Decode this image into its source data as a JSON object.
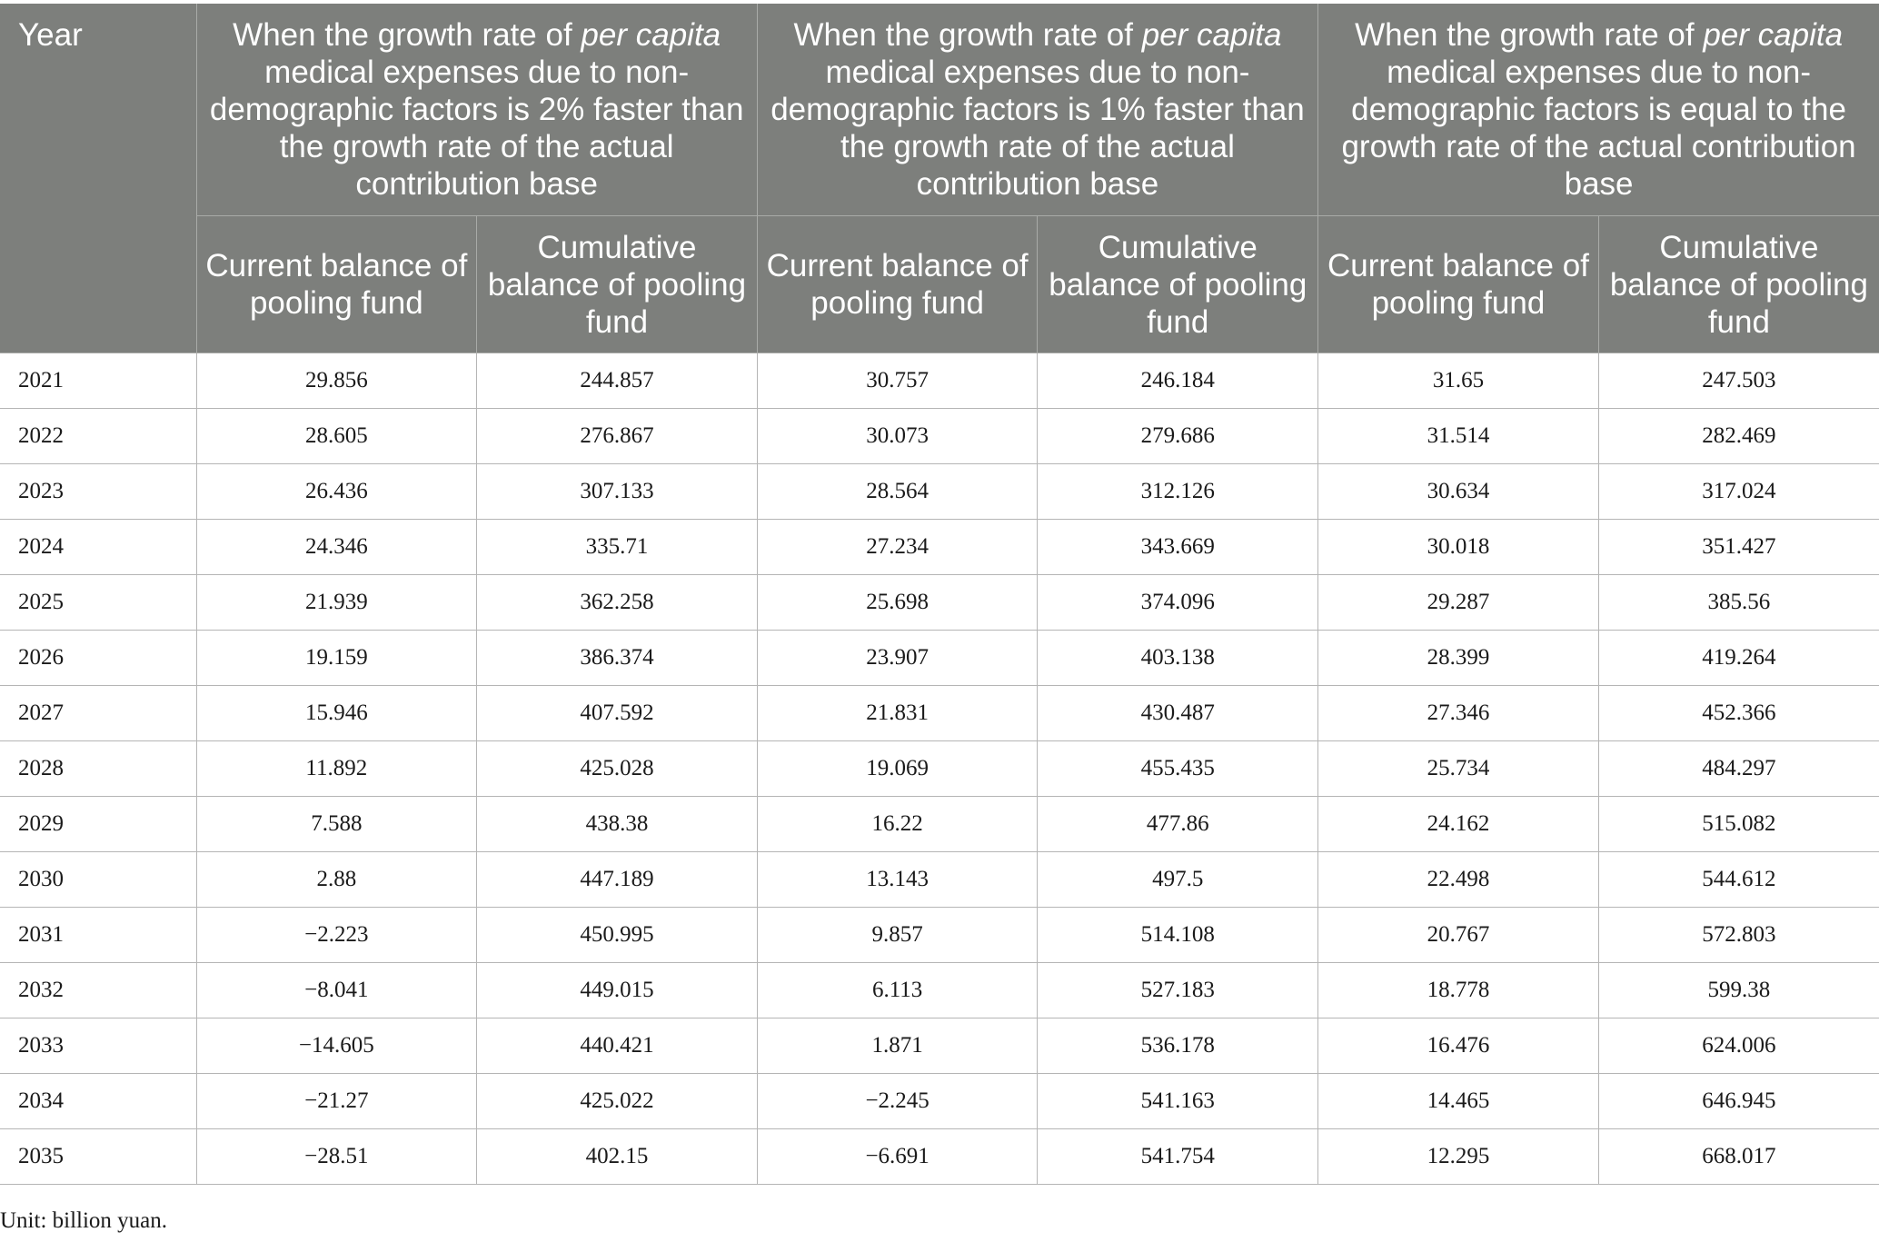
{
  "table": {
    "year_header": "Year",
    "group_headers": [
      {
        "pre": "When the growth rate of ",
        "em": "per capita",
        "post": " medical expenses due to non-demographic factors is 2% faster than the growth rate of the actual contribution base"
      },
      {
        "pre": "When the growth rate of ",
        "em": "per capita",
        "post": " medical expenses due to non-demographic factors is 1% faster than the growth rate of the actual contribution base"
      },
      {
        "pre": "When the growth rate of ",
        "em": "per capita",
        "post": " medical expenses due to non-demographic factors is equal to the growth rate of the actual contribution base"
      }
    ],
    "sub_headers": [
      "Current balance of pooling fund",
      "Cumulative balance of pooling fund",
      "Current balance of pooling fund",
      "Cumulative balance of pooling fund",
      "Current balance of pooling fund",
      "Cumulative balance of pooling fund"
    ],
    "rows": [
      [
        "2021",
        "29.856",
        "244.857",
        "30.757",
        "246.184",
        "31.65",
        "247.503"
      ],
      [
        "2022",
        "28.605",
        "276.867",
        "30.073",
        "279.686",
        "31.514",
        "282.469"
      ],
      [
        "2023",
        "26.436",
        "307.133",
        "28.564",
        "312.126",
        "30.634",
        "317.024"
      ],
      [
        "2024",
        "24.346",
        "335.71",
        "27.234",
        "343.669",
        "30.018",
        "351.427"
      ],
      [
        "2025",
        "21.939",
        "362.258",
        "25.698",
        "374.096",
        "29.287",
        "385.56"
      ],
      [
        "2026",
        "19.159",
        "386.374",
        "23.907",
        "403.138",
        "28.399",
        "419.264"
      ],
      [
        "2027",
        "15.946",
        "407.592",
        "21.831",
        "430.487",
        "27.346",
        "452.366"
      ],
      [
        "2028",
        "11.892",
        "425.028",
        "19.069",
        "455.435",
        "25.734",
        "484.297"
      ],
      [
        "2029",
        "7.588",
        "438.38",
        "16.22",
        "477.86",
        "24.162",
        "515.082"
      ],
      [
        "2030",
        "2.88",
        "447.189",
        "13.143",
        "497.5",
        "22.498",
        "544.612"
      ],
      [
        "2031",
        "−2.223",
        "450.995",
        "9.857",
        "514.108",
        "20.767",
        "572.803"
      ],
      [
        "2032",
        "−8.041",
        "449.015",
        "6.113",
        "527.183",
        "18.778",
        "599.38"
      ],
      [
        "2033",
        "−14.605",
        "440.421",
        "1.871",
        "536.178",
        "16.476",
        "624.006"
      ],
      [
        "2034",
        "−21.27",
        "425.022",
        "−2.245",
        "541.163",
        "14.465",
        "646.945"
      ],
      [
        "2035",
        "−28.51",
        "402.15",
        "−6.691",
        "541.754",
        "12.295",
        "668.017"
      ]
    ]
  },
  "note": "Unit: billion yuan.",
  "colors": {
    "header_bg": "#7d7f7c",
    "header_text": "#ffffff",
    "body_text": "#1a1a1a"
  }
}
